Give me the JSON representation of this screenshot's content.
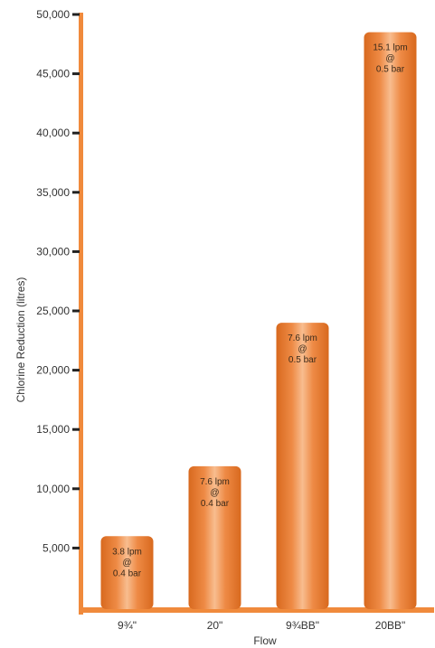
{
  "chart_data": {
    "type": "bar",
    "categories": [
      "9¾\"",
      "20\"",
      "9¾BB\"",
      "20BB\""
    ],
    "values": [
      6000,
      11900,
      24000,
      48500
    ],
    "bar_labels": [
      [
        "3.8 lpm",
        "@",
        "0.4 bar"
      ],
      [
        "7.6 lpm",
        "@",
        "0.4 bar"
      ],
      [
        "7.6 lpm",
        "@",
        "0.5 bar"
      ],
      [
        "15.1 lpm",
        "@",
        "0.5 bar"
      ]
    ],
    "xlabel": "Flow",
    "ylabel": "Chlorine Reduction (litres)",
    "ylim": [
      0,
      50000
    ],
    "yticks": [
      5000,
      10000,
      15000,
      20000,
      25000,
      30000,
      35000,
      40000,
      45000,
      50000
    ],
    "ytick_labels": [
      "5,000",
      "10,000",
      "15,000",
      "20,000",
      "25,000",
      "30,000",
      "35,000",
      "40,000",
      "45,000",
      "50,000"
    ],
    "grid": false,
    "colors": {
      "axis": "#f08a3c",
      "bar_dark": "#e2772a",
      "bar_light": "#f7b98a"
    }
  }
}
